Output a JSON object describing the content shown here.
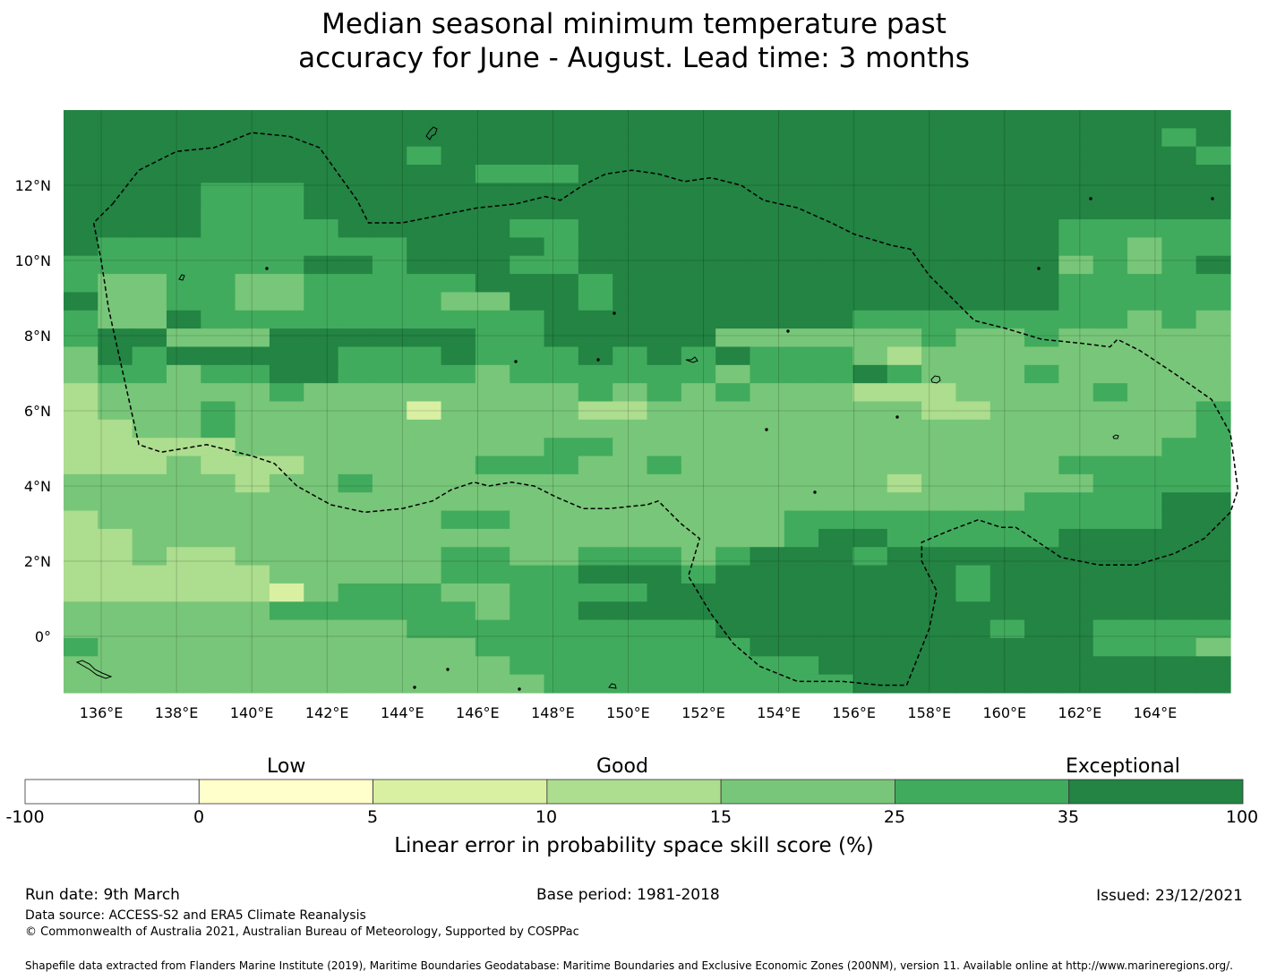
{
  "title": {
    "line1": "Median seasonal minimum temperature past",
    "line2": "accuracy for June - August. Lead time: 3 months"
  },
  "map": {
    "lon_labels": [
      "136°E",
      "138°E",
      "140°E",
      "142°E",
      "144°E",
      "146°E",
      "148°E",
      "150°E",
      "152°E",
      "154°E",
      "156°E",
      "158°E",
      "160°E",
      "162°E",
      "164°E"
    ],
    "lat_labels": [
      "12°N",
      "10°N",
      "8°N",
      "6°N",
      "4°N",
      "2°N",
      "0°"
    ],
    "lon_values": [
      136,
      138,
      140,
      142,
      144,
      146,
      148,
      150,
      152,
      154,
      156,
      158,
      160,
      162,
      164
    ],
    "lat_values": [
      12,
      10,
      8,
      6,
      4,
      2,
      0
    ],
    "extent": {
      "lon_min": 135,
      "lon_max": 166,
      "lat_min": -1.5,
      "lat_max": 14
    },
    "grid_rows_north_to_south": [
      "44444444444444444444444444444444444",
      "4444444444444444444444444444444434",
      "4444444444344444444444444444444443",
      "4444444444443334444444444444444444",
      "4444333444444444444444444444444444",
      "4444333444444444444444444444444444",
      "4444333344444334444444444444433333",
      "4333333333444434444444444444433233",
      "3333333443444334444444444444423234",
      "3223322333334443444444444444433333",
      "4223322333322443444444444444433333",
      "3224333333333344444444433333333232",
      "3442224444443344444222222322322222",
      "2434444433343334343433321222222222",
      "2332334433332333333233343222322222",
      "1222223222222223232322211122223222",
      "1222322222022221122222222112222223",
      "1122322222222222222222222222222223",
      "1111122222222233222222222222222233",
      "1112111222223332232222222222233333",
      "2222212232222222222222221222223333",
      "2222222222222222222222222222333344",
      "1222222222233222222223333333333344",
      "1122222222222222222223443333344444",
      "1121122222233223332344434444444444",
      "1111112222233334443444444434444444",
      "1111110233322333344444444434444444",
      "2222223333332334444444444444444444",
      "2222222222333333333444444443443333",
      "3222222222223333333344444444443332",
      "2222222222222333333333444444444444",
      "2222222222222233333333344444444444"
    ],
    "eez_boundary_lonlat": [
      [
        136.3,
        11.5
      ],
      [
        137,
        12.4
      ],
      [
        138,
        12.9
      ],
      [
        139,
        13.0
      ],
      [
        140,
        13.4
      ],
      [
        141,
        13.3
      ],
      [
        141.8,
        13.0
      ],
      [
        142.8,
        11.6
      ],
      [
        143.1,
        11.0
      ],
      [
        144,
        11.0
      ],
      [
        145,
        11.2
      ],
      [
        146,
        11.4
      ],
      [
        147,
        11.5
      ],
      [
        147.8,
        11.7
      ],
      [
        148.2,
        11.6
      ],
      [
        148.8,
        12.0
      ],
      [
        149.4,
        12.3
      ],
      [
        150.1,
        12.4
      ],
      [
        150.8,
        12.3
      ],
      [
        151.5,
        12.1
      ],
      [
        152.2,
        12.2
      ],
      [
        153,
        12.0
      ],
      [
        153.6,
        11.6
      ],
      [
        154.5,
        11.4
      ],
      [
        155.4,
        11.0
      ],
      [
        156,
        10.7
      ],
      [
        157,
        10.4
      ],
      [
        157.5,
        10.3
      ],
      [
        158,
        9.6
      ],
      [
        158.6,
        9.0
      ],
      [
        159.2,
        8.4
      ],
      [
        160,
        8.2
      ],
      [
        161,
        7.9
      ],
      [
        162,
        7.8
      ],
      [
        162.8,
        7.7
      ],
      [
        163,
        7.9
      ],
      [
        163.6,
        7.6
      ],
      [
        164.5,
        7.0
      ],
      [
        165.5,
        6.3
      ],
      [
        166.0,
        5.4
      ],
      [
        166.2,
        3.9
      ],
      [
        166.0,
        3.3
      ],
      [
        165.3,
        2.6
      ],
      [
        164.5,
        2.2
      ],
      [
        163.5,
        1.9
      ],
      [
        162.5,
        1.9
      ],
      [
        161.5,
        2.1
      ],
      [
        160.6,
        2.7
      ],
      [
        160.3,
        2.9
      ],
      [
        159.9,
        2.9
      ],
      [
        159.3,
        3.1
      ],
      [
        158.5,
        2.8
      ],
      [
        157.8,
        2.5
      ],
      [
        157.8,
        2.0
      ],
      [
        158.2,
        1.2
      ],
      [
        158.0,
        0.2
      ],
      [
        157.4,
        -1.3
      ],
      [
        156.7,
        -1.3
      ],
      [
        155.7,
        -1.2
      ],
      [
        154.5,
        -1.2
      ],
      [
        153.5,
        -0.8
      ],
      [
        152.8,
        -0.2
      ],
      [
        152.2,
        0.6
      ],
      [
        151.6,
        1.6
      ],
      [
        151.9,
        2.6
      ],
      [
        151.4,
        3.0
      ],
      [
        150.8,
        3.6
      ],
      [
        150.5,
        3.5
      ],
      [
        149.5,
        3.4
      ],
      [
        148.8,
        3.4
      ],
      [
        148.1,
        3.7
      ],
      [
        147.5,
        4.0
      ],
      [
        146.9,
        4.1
      ],
      [
        146.3,
        4.0
      ],
      [
        145.9,
        4.1
      ],
      [
        145.3,
        3.9
      ],
      [
        144.8,
        3.6
      ],
      [
        144.0,
        3.4
      ],
      [
        143.0,
        3.3
      ],
      [
        142.1,
        3.5
      ],
      [
        141.2,
        4.0
      ],
      [
        140.6,
        4.6
      ],
      [
        140.0,
        4.8
      ],
      [
        139.6,
        4.9
      ],
      [
        138.8,
        5.1
      ],
      [
        138.2,
        5.0
      ],
      [
        137.6,
        4.9
      ],
      [
        137.0,
        5.1
      ],
      [
        136.6,
        6.9
      ],
      [
        136.2,
        8.7
      ],
      [
        136.0,
        10.0
      ],
      [
        135.8,
        11.0
      ],
      [
        136.3,
        11.5
      ]
    ]
  },
  "colorbar": {
    "category_labels": [
      "Low",
      "Good",
      "Exceptional"
    ],
    "bounds": [
      "-100",
      "0",
      "5",
      "10",
      "15",
      "25",
      "35",
      "100"
    ],
    "colors": [
      "#ffffff",
      "#ffffcc",
      "#d9f0a3",
      "#addd8e",
      "#78c679",
      "#41ab5d",
      "#238443"
    ],
    "title": "Linear error in probability space skill score (%)"
  },
  "footer": {
    "run_date": "Run date: 9th March",
    "base_period": "Base period: 1981-2018",
    "issued": "Issued: 23/12/2021",
    "data_source": "Data source: ACCESS-S2 and ERA5 Climate Reanalysis",
    "copyright": "© Commonwealth of Australia 2021, Australian Bureau of Meteorology, Supported by COSPPac",
    "shapefile": "Shapefile data extracted from Flanders Marine Institute (2019), Maritime Boundaries Geodatabase: Maritime Boundaries and Exclusive Economic Zones (200NM), version 11. Available online at http://www.marineregions.org/."
  }
}
